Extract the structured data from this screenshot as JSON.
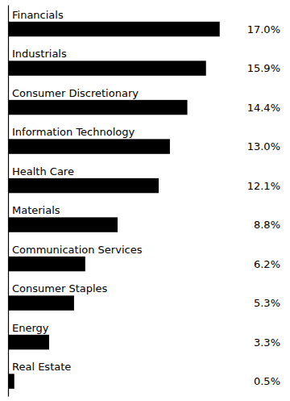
{
  "chart_data": {
    "type": "bar",
    "orientation": "horizontal",
    "categories": [
      "Financials",
      "Industrials",
      "Consumer Discretionary",
      "Information Technology",
      "Health Care",
      "Materials",
      "Communication Services",
      "Consumer Staples",
      "Energy",
      "Real Estate"
    ],
    "values": [
      17.0,
      15.9,
      14.4,
      13.0,
      12.1,
      8.8,
      6.2,
      5.3,
      3.3,
      0.5
    ],
    "value_labels": [
      "17.0%",
      "15.9%",
      "14.4%",
      "13.0%",
      "12.1%",
      "8.8%",
      "6.2%",
      "5.3%",
      "3.3%",
      "0.5%"
    ],
    "data_labels": true,
    "color": "#000000",
    "xlim": [
      0,
      22.0
    ],
    "tick_labels": false
  }
}
